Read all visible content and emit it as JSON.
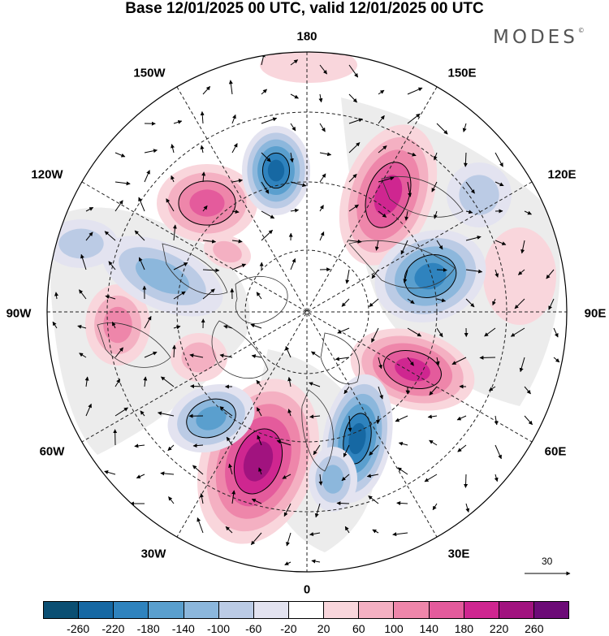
{
  "title": "Base 12/01/2025 00 UTC, valid 12/01/2025 00 UTC",
  "brand": "MODES",
  "brand_mark": "©",
  "longitude_labels": [
    "180",
    "150E",
    "120E",
    "90E",
    "60E",
    "30E",
    "0",
    "30W",
    "60W",
    "90W",
    "120W",
    "150W"
  ],
  "vector_reference": {
    "value": "30"
  },
  "colors": {
    "negative": [
      "#0b4f73",
      "#1668a3",
      "#2f83be",
      "#5a9fce",
      "#8cb7dc",
      "#bbcbe5",
      "#e3e3f0"
    ],
    "neutral": "#ffffff",
    "positive": [
      "#f9d6dc",
      "#f4b0c2",
      "#ee86aa",
      "#e45b9c",
      "#cf2690",
      "#a1137f",
      "#6c0b77"
    ],
    "land_mask": "#e9e9e9"
  },
  "colorbar_ticks": [
    "-260",
    "-220",
    "-180",
    "-140",
    "-100",
    "-60",
    "-20",
    "20",
    "60",
    "100",
    "140",
    "180",
    "220",
    "260"
  ]
}
